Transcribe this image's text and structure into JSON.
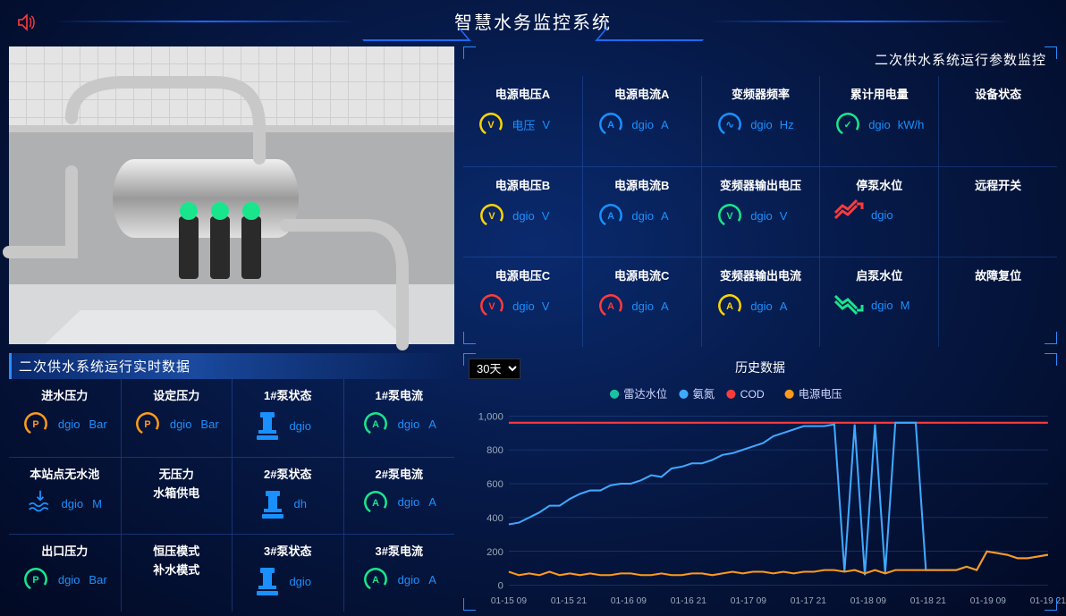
{
  "header": {
    "title": "智慧水务监控系统"
  },
  "colors": {
    "blue": "#1a90ff",
    "red": "#ff3b3b",
    "green": "#19e68c",
    "orange": "#ff9a1a",
    "yellow": "#ffd400",
    "series_teal": "#17c3a1",
    "series_blue": "#3fa9ff",
    "series_red": "#ff3b3b",
    "series_orange": "#ff9a1a",
    "grid": "#2a4a8a"
  },
  "param_panel": {
    "title": "二次供水系统运行参数监控",
    "cells": [
      {
        "label": "电源电压A",
        "value": "电压",
        "unit": "V",
        "icon": "ring",
        "ring_color": "#ffd400",
        "glyph": "V"
      },
      {
        "label": "电源电流A",
        "value": "dgio",
        "unit": "A",
        "icon": "ring",
        "ring_color": "#1a90ff",
        "glyph": "A"
      },
      {
        "label": "变频器频率",
        "value": "dgio",
        "unit": "Hz",
        "icon": "ring",
        "ring_color": "#1a90ff",
        "glyph": "∿"
      },
      {
        "label": "累计用电量",
        "value": "dgio",
        "unit": "kW/h",
        "icon": "ring",
        "ring_color": "#19e68c",
        "glyph": "✓"
      },
      {
        "label": "设备状态",
        "value": "",
        "unit": "",
        "icon": "none"
      },
      {
        "label": "电源电压B",
        "value": "dgio",
        "unit": "V",
        "icon": "ring",
        "ring_color": "#ffd400",
        "glyph": "V"
      },
      {
        "label": "电源电流B",
        "value": "dgio",
        "unit": "A",
        "icon": "ring",
        "ring_color": "#1a90ff",
        "glyph": "A"
      },
      {
        "label": "变频器输出电压",
        "value": "dgio",
        "unit": "V",
        "icon": "ring",
        "ring_color": "#19e68c",
        "glyph": "V"
      },
      {
        "label": "停泵水位",
        "value": "dgio",
        "unit": "",
        "icon": "trend-up",
        "trend_color": "#ff3b3b"
      },
      {
        "label": "远程开关",
        "value": "",
        "unit": "",
        "icon": "none"
      },
      {
        "label": "电源电压C",
        "value": "dgio",
        "unit": "V",
        "icon": "ring",
        "ring_color": "#ff3b3b",
        "glyph": "V"
      },
      {
        "label": "电源电流C",
        "value": "dgio",
        "unit": "A",
        "icon": "ring",
        "ring_color": "#ff3b3b",
        "glyph": "A"
      },
      {
        "label": "变频器输出电流",
        "value": "dgio",
        "unit": "A",
        "icon": "ring",
        "ring_color": "#ffd400",
        "glyph": "A"
      },
      {
        "label": "启泵水位",
        "value": "dgio",
        "unit": "M",
        "icon": "trend-down",
        "trend_color": "#19e68c"
      },
      {
        "label": "故障复位",
        "value": "",
        "unit": "",
        "icon": "none"
      }
    ]
  },
  "rt_panel": {
    "title": "二次供水系统运行实时数据",
    "cells": [
      {
        "label": "进水压力",
        "value": "dgio",
        "unit": "Bar",
        "icon": "ring",
        "ring_color": "#ff9a1a",
        "glyph": "P"
      },
      {
        "label": "设定压力",
        "value": "dgio",
        "unit": "Bar",
        "icon": "ring",
        "ring_color": "#ff9a1a",
        "glyph": "P"
      },
      {
        "label": "1#泵状态",
        "value": "dgio",
        "unit": "",
        "icon": "pump",
        "pump_color": "#1a90ff"
      },
      {
        "label": "1#泵电流",
        "value": "dgio",
        "unit": "A",
        "icon": "ring",
        "ring_color": "#19e68c",
        "glyph": "A"
      },
      {
        "label": "本站点无水池",
        "value": "dgio",
        "unit": "M",
        "icon": "wave",
        "wave_color": "#1a90ff"
      },
      {
        "label": "无压力",
        "stack": [
          "无压力",
          "水箱供电"
        ],
        "icon": "none"
      },
      {
        "label": "2#泵状态",
        "value": "dh",
        "unit": "",
        "icon": "pump",
        "pump_color": "#1a90ff"
      },
      {
        "label": "2#泵电流",
        "value": "dgio",
        "unit": "A",
        "icon": "ring",
        "ring_color": "#19e68c",
        "glyph": "A"
      },
      {
        "label": "出口压力",
        "value": "dgio",
        "unit": "Bar",
        "icon": "ring",
        "ring_color": "#19e68c",
        "glyph": "P"
      },
      {
        "label": "恒压模式",
        "stack": [
          "恒压模式",
          "补水模式"
        ],
        "icon": "none"
      },
      {
        "label": "3#泵状态",
        "value": "dgio",
        "unit": "",
        "icon": "pump",
        "pump_color": "#1a90ff"
      },
      {
        "label": "3#泵电流",
        "value": "dgio",
        "unit": "A",
        "icon": "ring",
        "ring_color": "#19e68c",
        "glyph": "A"
      }
    ]
  },
  "history": {
    "title": "历史数据",
    "range_selected": "30天",
    "legend": [
      {
        "name": "雷达水位",
        "color": "#17c3a1"
      },
      {
        "name": "氨氮",
        "color": "#3fa9ff"
      },
      {
        "name": "COD",
        "color": "#ff3b3b"
      },
      {
        "name": "电源电压",
        "color": "#ff9a1a"
      }
    ],
    "x_ticks": [
      "01-15 09",
      "01-15 21",
      "01-16 09",
      "01-16 21",
      "01-17 09",
      "01-17 21",
      "01-18 09",
      "01-18 21",
      "01-19 09",
      "01-19 21"
    ],
    "y_max": 1000,
    "y_step": 200,
    "cod_const": 960,
    "nh_series": [
      360,
      370,
      400,
      430,
      470,
      470,
      510,
      540,
      560,
      560,
      590,
      600,
      600,
      620,
      650,
      640,
      690,
      700,
      720,
      720,
      740,
      770,
      780,
      800,
      820,
      840,
      880,
      900,
      920,
      940,
      940,
      940,
      950,
      80,
      950,
      60,
      950,
      70,
      960,
      960,
      960,
      90,
      90,
      90,
      90,
      110,
      90,
      200,
      190,
      180,
      160,
      160,
      170,
      180
    ],
    "volt_series": [
      80,
      60,
      70,
      60,
      80,
      60,
      70,
      60,
      70,
      60,
      60,
      70,
      70,
      60,
      60,
      70,
      60,
      60,
      70,
      70,
      60,
      70,
      80,
      70,
      80,
      80,
      70,
      80,
      70,
      80,
      80,
      90,
      90,
      80,
      90,
      70,
      90,
      70,
      90,
      90,
      90,
      90,
      90,
      90,
      90,
      110,
      90,
      200,
      190,
      180,
      160,
      160,
      170,
      180
    ]
  }
}
